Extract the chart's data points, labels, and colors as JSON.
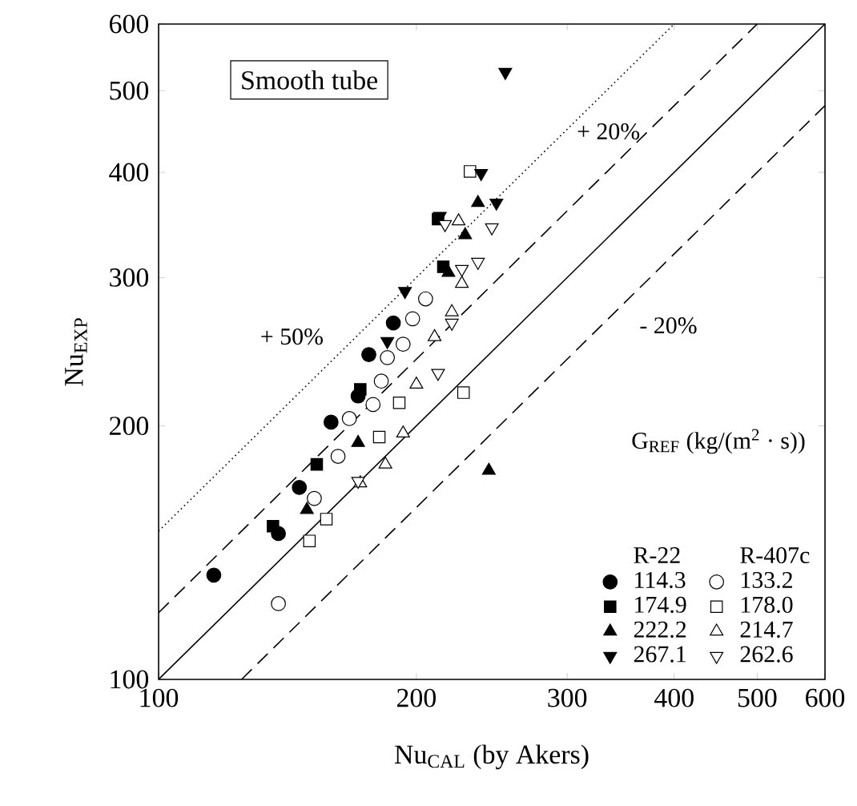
{
  "chart_data": {
    "type": "scatter",
    "title": "Smooth tube",
    "xlabel": "Nu$_{CAL}$ (by Akers)",
    "ylabel": "Nu$_{EXP}$",
    "legend_title": "G$_{REF}$  (kg/(m$^{2}$ · s))",
    "annotations": [
      "+ 20%",
      "+ 50%",
      "- 20%",
      "R-22",
      "R-407c"
    ],
    "log": "xy",
    "legend": "bottom right",
    "xlim": [
      100,
      600
    ],
    "ylim": [
      100,
      600
    ],
    "xticks": [
      100,
      200,
      300,
      400,
      500,
      600
    ],
    "yticks": [
      100,
      200,
      300,
      400,
      500,
      600
    ],
    "series": [
      {
        "type": "line",
        "line_style": "solid",
        "color": "#000000",
        "x": [
          100,
          600
        ],
        "values": [
          100,
          600
        ]
      },
      {
        "type": "line",
        "line_style": "dashed",
        "color": "#000000",
        "x": [
          100,
          500
        ],
        "values": [
          120,
          600
        ]
      },
      {
        "type": "line",
        "line_style": "dashed",
        "color": "#000000",
        "x": [
          125,
          600
        ],
        "values": [
          100,
          480
        ]
      },
      {
        "type": "line",
        "line_style": "dotted",
        "color": "#000000",
        "x": [
          100,
          400
        ],
        "values": [
          150,
          600
        ]
      },
      {
        "name": "114.3",
        "marker": "circle",
        "color": "#000000",
        "x": [
          116,
          138,
          146,
          159,
          171,
          176,
          188
        ],
        "values": [
          133,
          149,
          169,
          202,
          217,
          243,
          265
        ]
      },
      {
        "name": "174.9",
        "marker": "square",
        "color": "#000000",
        "x": [
          136,
          153,
          172,
          212,
          215
        ],
        "values": [
          152,
          180,
          221,
          352,
          309
        ]
      },
      {
        "name": "222.2",
        "marker": "triangle",
        "color": "#000000",
        "x": [
          243,
          236,
          149,
          171,
          218,
          228
        ],
        "values": [
          177,
          368,
          159,
          191,
          304,
          337
        ]
      },
      {
        "name": "267.1",
        "marker": "triangle-down",
        "color": "#000000",
        "x": [
          254,
          248,
          194,
          213,
          185,
          238
        ],
        "values": [
          526,
          368,
          289,
          355,
          252,
          399
        ]
      },
      {
        "name": "133.2",
        "marker": "circle-open",
        "color": "#000000",
        "x": [
          138,
          152,
          162,
          167,
          178,
          182,
          185,
          193,
          198,
          205
        ],
        "values": [
          123,
          164,
          184,
          204,
          212,
          226,
          241,
          250,
          268,
          283
        ]
      },
      {
        "name": "178.0",
        "marker": "square-open",
        "color": "#000000",
        "x": [
          150,
          157,
          181,
          191,
          227,
          231
        ],
        "values": [
          146,
          155,
          194,
          213,
          219,
          401
        ]
      },
      {
        "name": "214.7",
        "marker": "triangle-open",
        "color": "#000000",
        "x": [
          172,
          184,
          193,
          200,
          210,
          220,
          226,
          224
        ],
        "values": [
          171,
          180,
          196,
          224,
          255,
          273,
          295,
          350
        ]
      },
      {
        "name": "262.6",
        "marker": "triangle-down-open",
        "color": "#000000",
        "x": [
          171,
          212,
          220,
          216,
          245,
          236,
          226
        ],
        "values": [
          172,
          231,
          265,
          347,
          344,
          313,
          307
        ]
      }
    ]
  }
}
